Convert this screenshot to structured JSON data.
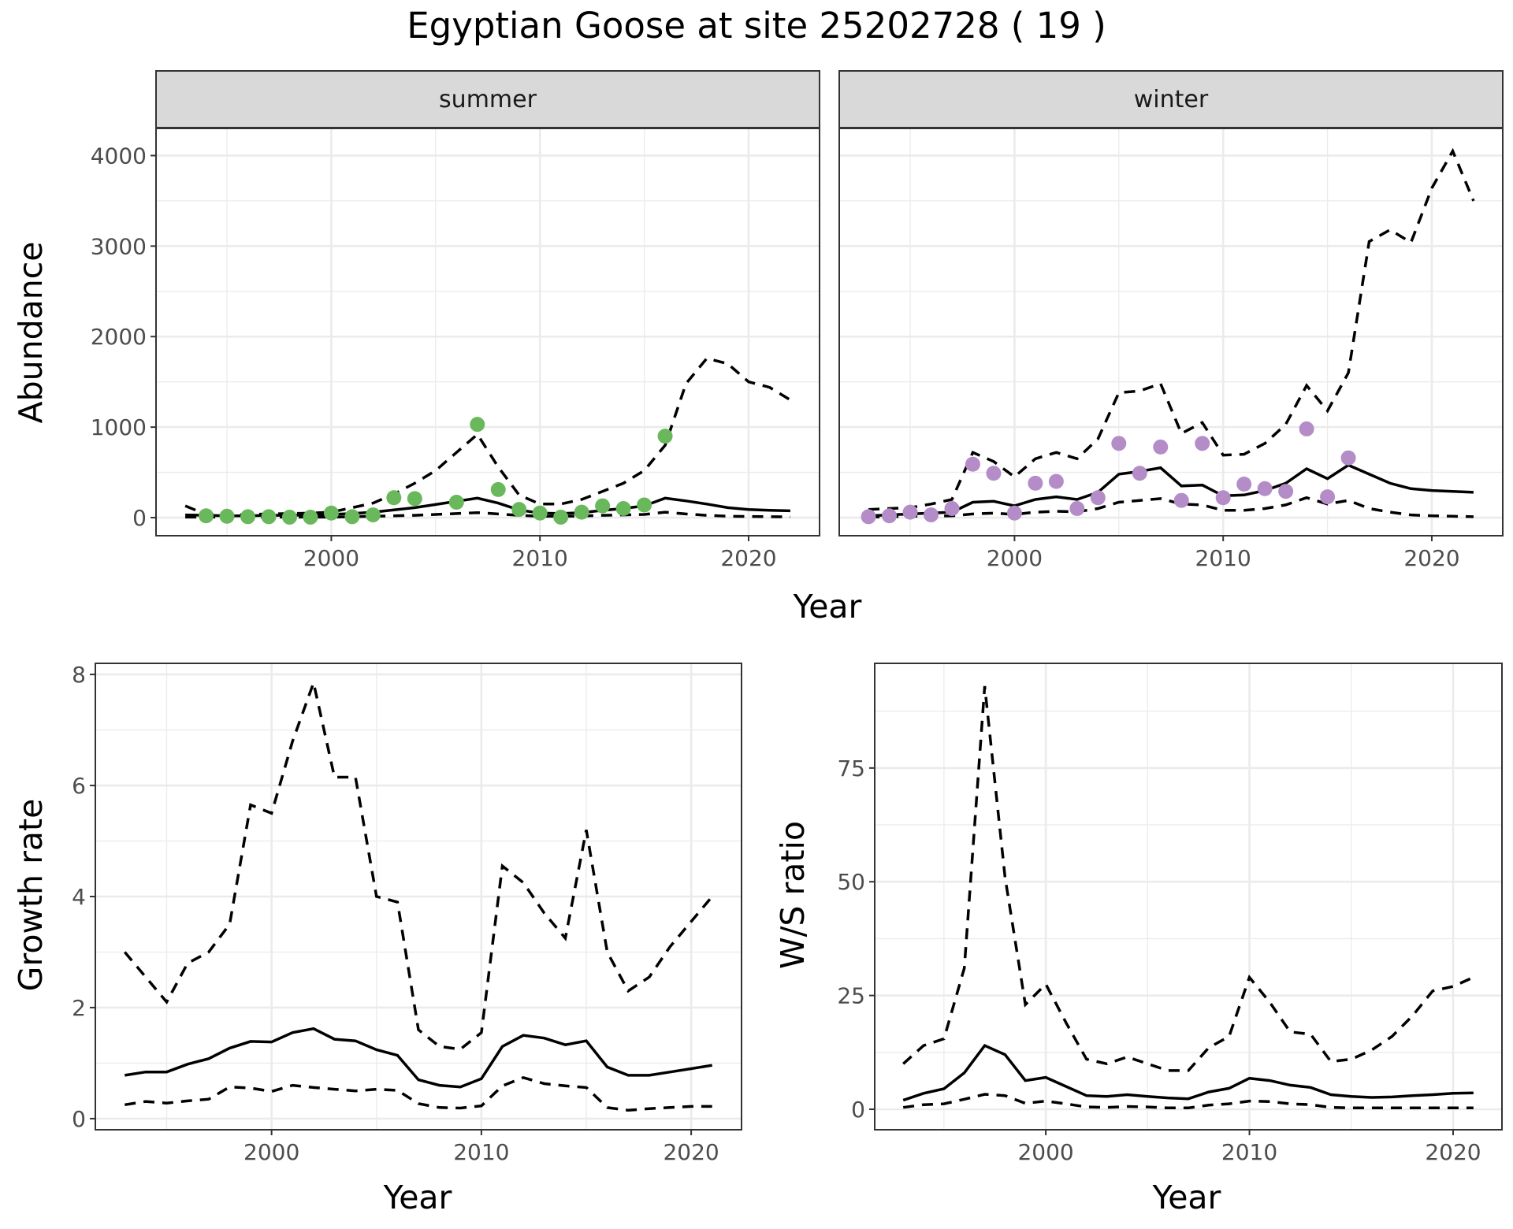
{
  "title": "Egyptian Goose at site 25202728 ( 19 )",
  "colors": {
    "summer": "#6ab85c",
    "winter": "#b48cc8",
    "line": "#000000"
  },
  "chart_data": [
    {
      "type": "line",
      "panel": "summer",
      "ylabel": "Abundance",
      "xlabel": "Year",
      "ylim": [
        -200,
        4300
      ],
      "yticks": [
        0,
        1000,
        2000,
        3000,
        4000
      ],
      "xticks": [
        2000,
        2010,
        2020
      ],
      "xlim": [
        1991.6,
        2023.4
      ],
      "years": [
        1993,
        1994,
        1995,
        1996,
        1997,
        1998,
        1999,
        2000,
        2001,
        2002,
        2003,
        2004,
        2005,
        2006,
        2007,
        2008,
        2009,
        2010,
        2011,
        2012,
        2013,
        2014,
        2015,
        2016,
        2017,
        2018,
        2019,
        2020,
        2021,
        2022
      ],
      "series": [
        {
          "role": "upper",
          "values": [
            130,
            35,
            30,
            35,
            40,
            45,
            50,
            60,
            110,
            160,
            260,
            380,
            520,
            720,
            920,
            560,
            250,
            150,
            150,
            200,
            290,
            380,
            520,
            800,
            1480,
            1760,
            1700,
            1500,
            1440,
            1300
          ]
        },
        {
          "role": "mean",
          "values": [
            30,
            25,
            20,
            20,
            25,
            25,
            30,
            35,
            45,
            60,
            85,
            110,
            145,
            180,
            215,
            160,
            85,
            50,
            45,
            55,
            80,
            100,
            130,
            215,
            185,
            150,
            110,
            90,
            80,
            75
          ]
        },
        {
          "role": "lower",
          "values": [
            5,
            5,
            5,
            5,
            5,
            5,
            5,
            5,
            10,
            15,
            20,
            25,
            35,
            45,
            55,
            40,
            25,
            15,
            15,
            18,
            25,
            30,
            35,
            60,
            40,
            25,
            15,
            12,
            10,
            8
          ]
        }
      ],
      "points": {
        "x": [
          1994,
          1995,
          1996,
          1997,
          1998,
          1999,
          2000,
          2001,
          2002,
          2003,
          2004,
          2006,
          2007,
          2008,
          2009,
          2010,
          2011,
          2012,
          2013,
          2014,
          2015,
          2016
        ],
        "y": [
          20,
          15,
          10,
          10,
          5,
          5,
          50,
          10,
          30,
          220,
          210,
          170,
          1030,
          310,
          90,
          50,
          5,
          60,
          130,
          100,
          140,
          900
        ]
      }
    },
    {
      "type": "line",
      "panel": "winter",
      "ylabel": "Abundance",
      "xlabel": "Year",
      "ylim": [
        -200,
        4300
      ],
      "yticks": [
        0,
        1000,
        2000,
        3000,
        4000
      ],
      "xticks": [
        2000,
        2010,
        2020
      ],
      "xlim": [
        1991.6,
        2023.4
      ],
      "years": [
        1993,
        1994,
        1995,
        1996,
        1997,
        1998,
        1999,
        2000,
        2001,
        2002,
        2003,
        2004,
        2005,
        2006,
        2007,
        2008,
        2009,
        2010,
        2011,
        2012,
        2013,
        2014,
        2015,
        2016,
        2017,
        2018,
        2019,
        2020,
        2021,
        2022
      ],
      "series": [
        {
          "role": "upper",
          "values": [
            90,
            100,
            110,
            150,
            200,
            720,
            620,
            450,
            650,
            720,
            650,
            870,
            1380,
            1400,
            1480,
            930,
            1050,
            690,
            700,
            820,
            1030,
            1460,
            1180,
            1600,
            3050,
            3180,
            3040,
            3640,
            4050,
            3500
          ]
        },
        {
          "role": "mean",
          "values": [
            20,
            30,
            40,
            50,
            60,
            170,
            180,
            130,
            200,
            230,
            200,
            280,
            480,
            510,
            550,
            350,
            360,
            240,
            250,
            300,
            380,
            540,
            430,
            580,
            480,
            380,
            320,
            300,
            290,
            280
          ]
        },
        {
          "role": "lower",
          "values": [
            5,
            10,
            15,
            15,
            20,
            40,
            50,
            35,
            60,
            70,
            65,
            100,
            170,
            190,
            210,
            150,
            140,
            80,
            80,
            100,
            140,
            220,
            150,
            190,
            100,
            60,
            30,
            20,
            15,
            10
          ]
        }
      ],
      "points": {
        "x": [
          1993,
          1994,
          1995,
          1996,
          1997,
          1998,
          1999,
          2000,
          2001,
          2002,
          2003,
          2004,
          2005,
          2006,
          2007,
          2008,
          2009,
          2010,
          2011,
          2012,
          2013,
          2014,
          2015,
          2016
        ],
        "y": [
          10,
          20,
          60,
          30,
          100,
          590,
          490,
          50,
          380,
          400,
          100,
          220,
          820,
          490,
          780,
          190,
          820,
          220,
          370,
          320,
          290,
          980,
          230,
          660
        ]
      }
    },
    {
      "type": "line",
      "panel": "growth",
      "ylabel": "Growth rate",
      "xlabel": "Year",
      "ylim": [
        -0.2,
        8.2
      ],
      "yticks": [
        0,
        2,
        4,
        6,
        8
      ],
      "xticks": [
        2000,
        2010,
        2020
      ],
      "xlim": [
        1991.6,
        2022.4
      ],
      "years": [
        1993,
        1994,
        1995,
        1996,
        1997,
        1998,
        1999,
        2000,
        2001,
        2002,
        2003,
        2004,
        2005,
        2006,
        2007,
        2008,
        2009,
        2010,
        2011,
        2012,
        2013,
        2014,
        2015,
        2016,
        2017,
        2018,
        2019,
        2020,
        2021
      ],
      "series": [
        {
          "role": "upper",
          "values": [
            3.0,
            2.55,
            2.1,
            2.8,
            3.0,
            3.5,
            5.65,
            5.5,
            6.8,
            7.85,
            6.15,
            6.15,
            4.0,
            3.9,
            1.6,
            1.3,
            1.25,
            1.55,
            4.55,
            4.25,
            3.7,
            3.25,
            5.2,
            3.0,
            2.3,
            2.55,
            3.1,
            3.55,
            4.0
          ]
        },
        {
          "role": "mean",
          "values": [
            0.78,
            0.84,
            0.84,
            0.98,
            1.08,
            1.27,
            1.39,
            1.38,
            1.55,
            1.62,
            1.43,
            1.4,
            1.24,
            1.14,
            0.7,
            0.6,
            0.57,
            0.72,
            1.3,
            1.5,
            1.45,
            1.33,
            1.4,
            0.93,
            0.78,
            0.78,
            0.84,
            0.9,
            0.96
          ]
        },
        {
          "role": "lower",
          "values": [
            0.25,
            0.31,
            0.28,
            0.32,
            0.35,
            0.57,
            0.55,
            0.49,
            0.6,
            0.56,
            0.53,
            0.5,
            0.53,
            0.51,
            0.27,
            0.2,
            0.19,
            0.23,
            0.59,
            0.74,
            0.63,
            0.59,
            0.56,
            0.2,
            0.15,
            0.18,
            0.2,
            0.22,
            0.22
          ]
        }
      ]
    },
    {
      "type": "line",
      "panel": "ratio",
      "ylabel": "W/S ratio",
      "xlabel": "Year",
      "ylim": [
        -4.5,
        98
      ],
      "yticks": [
        0,
        25,
        50,
        75
      ],
      "xticks": [
        2000,
        2010,
        2020
      ],
      "xlim": [
        1991.6,
        2022.4
      ],
      "years": [
        1993,
        1994,
        1995,
        1996,
        1997,
        1998,
        1999,
        2000,
        2001,
        2002,
        2003,
        2004,
        2005,
        2006,
        2007,
        2008,
        2009,
        2010,
        2011,
        2012,
        2013,
        2014,
        2015,
        2016,
        2017,
        2018,
        2019,
        2020,
        2021
      ],
      "series": [
        {
          "role": "upper",
          "values": [
            10,
            14,
            15.5,
            31,
            93,
            51,
            23,
            27.5,
            19,
            11,
            10,
            11.5,
            10,
            8.5,
            8.5,
            13.5,
            16,
            29,
            23.5,
            17,
            16.5,
            10.5,
            11,
            13,
            16,
            20.5,
            26,
            27,
            29
          ]
        },
        {
          "role": "mean",
          "values": [
            2,
            3.5,
            4.5,
            8,
            14,
            12,
            6.3,
            7,
            5,
            3,
            2.8,
            3.2,
            2.8,
            2.5,
            2.3,
            3.8,
            4.6,
            6.8,
            6.3,
            5.3,
            4.8,
            3.2,
            2.8,
            2.6,
            2.7,
            3,
            3.2,
            3.5,
            3.6
          ]
        },
        {
          "role": "lower",
          "values": [
            0.4,
            1,
            1.2,
            2.2,
            3.3,
            3,
            1.3,
            1.8,
            1.2,
            0.5,
            0.4,
            0.6,
            0.5,
            0.3,
            0.3,
            0.9,
            1.2,
            1.8,
            1.7,
            1.2,
            1,
            0.4,
            0.3,
            0.3,
            0.3,
            0.3,
            0.3,
            0.3,
            0.3
          ]
        }
      ]
    }
  ],
  "strips": {
    "summer": "summer",
    "winter": "winter"
  },
  "labels": {
    "abundance": "Abundance",
    "year": "Year",
    "growth": "Growth rate",
    "ratio": "W/S ratio"
  }
}
